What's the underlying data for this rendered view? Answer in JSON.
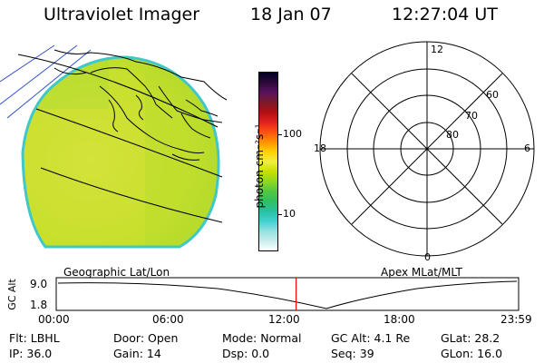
{
  "header": {
    "title": "Ultraviolet Imager",
    "date": "18 Jan 07",
    "time": "12:27:04 UT"
  },
  "colorbar": {
    "unit_label": "photon cm⁻²s⁻¹",
    "ticks": [
      "100",
      "10"
    ],
    "scale": "log",
    "colors": [
      "#000022",
      "#2a0a3a",
      "#5a1060",
      "#7a1a2a",
      "#b01010",
      "#e02020",
      "#ff5010",
      "#ff9000",
      "#ffd000",
      "#f0ee40",
      "#c8e000",
      "#90d820",
      "#50c840",
      "#30c060",
      "#28c0a0",
      "#40d0d0",
      "#90e0e0",
      "#c8ecec",
      "#ffffff"
    ]
  },
  "polar_plot": {
    "top_label": "12",
    "bottom_label": "0",
    "left_label": "18",
    "right_label": "6",
    "lat_labels": [
      "60",
      "70",
      "80"
    ]
  },
  "timeline": {
    "y_axis_label": "GC Alt",
    "y_ticks": [
      "9.0",
      "1.8"
    ],
    "left_title": "Geographic Lat/Lon",
    "right_title": "Apex MLat/MLT",
    "x_ticks": [
      "00:00",
      "06:00",
      "12:00",
      "18:00",
      "23:59"
    ],
    "current_marker_time_hours": 12.45,
    "marker_color": "#ff0000"
  },
  "info": {
    "flt": "Flt: LBHL",
    "door": "Door: Open",
    "mode": "Mode: Normal",
    "gc_alt": "GC Alt: 4.1 Re",
    "glat": "GLat:  28.2",
    "ip": "IP: 36.0",
    "gain": "Gain: 14",
    "dsp": "Dsp:    0.0",
    "seq": "Seq: 39",
    "glon": "GLon:  16.0"
  }
}
